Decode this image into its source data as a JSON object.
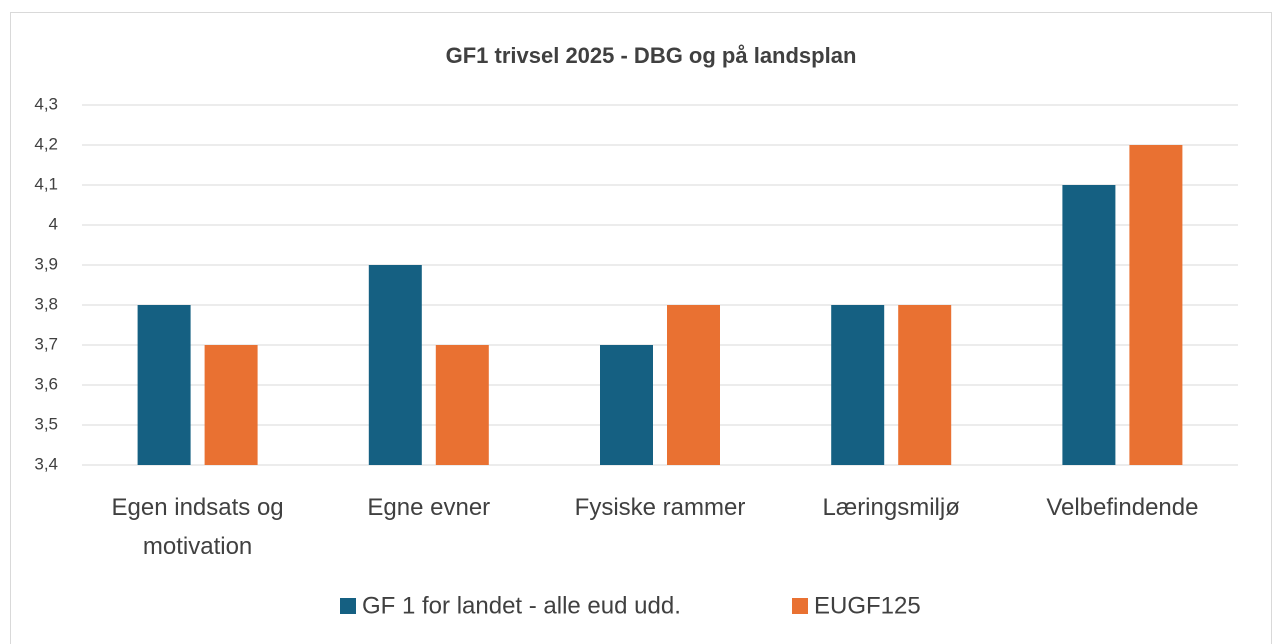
{
  "chart_data": {
    "type": "bar",
    "title": "GF1 trivsel 2025  - DBG og på landsplan",
    "categories": [
      "Egen indsats og motivation",
      "Egne evner",
      "Fysiske rammer",
      "Læringsmiljø",
      "Velbefindende"
    ],
    "series": [
      {
        "name": "GF 1 for landet - alle eud udd.",
        "color": "#156082",
        "values": [
          3.8,
          3.9,
          3.7,
          3.8,
          4.1
        ]
      },
      {
        "name": "EUGF125",
        "color": "#e97132",
        "values": [
          3.7,
          3.7,
          3.8,
          3.8,
          4.2
        ]
      }
    ],
    "ylim": [
      3.4,
      4.3
    ],
    "yticks": [
      {
        "value": 3.4,
        "label": "3,4"
      },
      {
        "value": 3.5,
        "label": "3,5"
      },
      {
        "value": 3.6,
        "label": "3,6"
      },
      {
        "value": 3.7,
        "label": "3,7"
      },
      {
        "value": 3.8,
        "label": "3,8"
      },
      {
        "value": 3.9,
        "label": "3,9"
      },
      4,
      {
        "value": 4.1,
        "label": "4,1"
      },
      {
        "value": 4.2,
        "label": "4,2"
      },
      {
        "value": 4.3,
        "label": "4,3"
      }
    ],
    "grid": true,
    "legend": "bottom"
  }
}
